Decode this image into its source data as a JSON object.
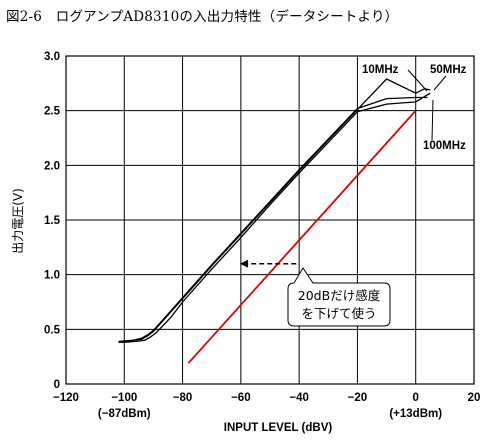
{
  "page_title": "図2-6　ログアンプAD8310の入出力特性（データシートより）",
  "chart_data": {
    "type": "line",
    "title": "図2-6　ログアンプAD8310の入出力特性（データシートより）",
    "xlabel": "INPUT LEVEL (dBV)",
    "ylabel": "出力電圧(V)",
    "xlim": [
      -120,
      20
    ],
    "ylim": [
      0,
      3.0
    ],
    "xticks": [
      -120,
      -100,
      -80,
      -60,
      -40,
      -20,
      0,
      20
    ],
    "xtick_labels": [
      "−120",
      "−100",
      "−80",
      "−60",
      "−40",
      "−20",
      "0",
      "20"
    ],
    "yticks": [
      0,
      0.5,
      1.0,
      1.5,
      2.0,
      2.5,
      3.0
    ],
    "ytick_labels": [
      "0",
      "0.5",
      "1.0",
      "1.5",
      "2.0",
      "2.5",
      "3.0"
    ],
    "x_sublabels": [
      {
        "x": -100,
        "text": "(−87dBm)"
      },
      {
        "x": 0,
        "text": "(+13dBm)"
      }
    ],
    "grid": true,
    "series": [
      {
        "name": "10MHz",
        "color": "#000000",
        "x": [
          -102,
          -97,
          -94,
          -92,
          -90,
          -85,
          -80,
          -70,
          -60,
          -50,
          -40,
          -30,
          -20,
          -10,
          0,
          2,
          4
        ],
        "y": [
          0.39,
          0.4,
          0.42,
          0.45,
          0.49,
          0.64,
          0.79,
          1.09,
          1.38,
          1.67,
          1.96,
          2.24,
          2.52,
          2.61,
          2.62,
          2.62,
          2.62
        ]
      },
      {
        "name": "50MHz",
        "color": "#000000",
        "x": [
          -102,
          -97,
          -94,
          -92,
          -90,
          -85,
          -80,
          -70,
          -60,
          -50,
          -40,
          -30,
          -20,
          -10,
          0,
          3,
          5
        ],
        "y": [
          0.38,
          0.4,
          0.41,
          0.44,
          0.48,
          0.63,
          0.78,
          1.08,
          1.37,
          1.66,
          1.95,
          2.23,
          2.51,
          2.79,
          2.66,
          2.7,
          2.69
        ]
      },
      {
        "name": "100MHz",
        "color": "#000000",
        "x": [
          -101,
          -96,
          -93,
          -91,
          -89,
          -84,
          -80,
          -70,
          -60,
          -50,
          -40,
          -30,
          -20,
          -10,
          0,
          3,
          5
        ],
        "y": [
          0.38,
          0.39,
          0.4,
          0.43,
          0.47,
          0.61,
          0.75,
          1.05,
          1.34,
          1.64,
          1.93,
          2.21,
          2.49,
          2.56,
          2.58,
          2.63,
          2.66
        ]
      },
      {
        "name": "",
        "color": "#e00000",
        "x": [
          -78,
          0
        ],
        "y": [
          0.19,
          2.5
        ]
      }
    ],
    "series_labels": [
      "10MHz",
      "50MHz",
      "100MHz"
    ],
    "annotation": {
      "arrow_from": {
        "x": -41,
        "y": 1.1
      },
      "arrow_to": {
        "x": -61,
        "y": 1.1
      },
      "text_lines": [
        "20dBだけ感度",
        "を下げて使う"
      ]
    }
  }
}
